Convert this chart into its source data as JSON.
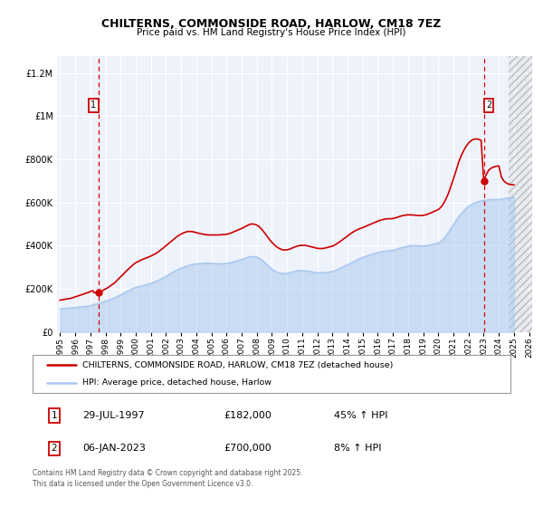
{
  "title": "CHILTERNS, COMMONSIDE ROAD, HARLOW, CM18 7EZ",
  "subtitle": "Price paid vs. HM Land Registry's House Price Index (HPI)",
  "xlim": [
    1994.8,
    2026.2
  ],
  "ylim": [
    0,
    1280000
  ],
  "yticks": [
    0,
    200000,
    400000,
    600000,
    800000,
    1000000,
    1200000
  ],
  "xticks": [
    1995,
    1996,
    1997,
    1998,
    1999,
    2000,
    2001,
    2002,
    2003,
    2004,
    2005,
    2006,
    2007,
    2008,
    2009,
    2010,
    2011,
    2012,
    2013,
    2014,
    2015,
    2016,
    2017,
    2018,
    2019,
    2020,
    2021,
    2022,
    2023,
    2024,
    2025,
    2026
  ],
  "hpi_color": "#a8c8f0",
  "property_color": "#cc0000",
  "dashed_line_color": "#cc0000",
  "background_color": "#ffffff",
  "plot_bg_color": "#eef2fa",
  "grid_color": "#ffffff",
  "hatch_start": 2024.67,
  "marker1_date": 1997.57,
  "marker1_price": 182000,
  "marker2_date": 2023.02,
  "marker2_price": 700000,
  "legend_label1": "CHILTERNS, COMMONSIDE ROAD, HARLOW, CM18 7EZ (detached house)",
  "legend_label2": "HPI: Average price, detached house, Harlow",
  "note1_date": "29-JUL-1997",
  "note1_price": "£182,000",
  "note1_hpi": "45% ↑ HPI",
  "note2_date": "06-JAN-2023",
  "note2_price": "£700,000",
  "note2_hpi": "8% ↑ HPI",
  "footer": "Contains HM Land Registry data © Crown copyright and database right 2025.\nThis data is licensed under the Open Government Licence v3.0.",
  "hpi_data_x": [
    1995.0,
    1995.08,
    1995.17,
    1995.25,
    1995.33,
    1995.42,
    1995.5,
    1995.58,
    1995.67,
    1995.75,
    1995.83,
    1995.92,
    1996.0,
    1996.08,
    1996.17,
    1996.25,
    1996.33,
    1996.42,
    1996.5,
    1996.58,
    1996.67,
    1996.75,
    1996.83,
    1996.92,
    1997.0,
    1997.08,
    1997.17,
    1997.25,
    1997.33,
    1997.42,
    1997.5,
    1997.58,
    1997.67,
    1997.75,
    1997.83,
    1997.92,
    1998.0,
    1998.08,
    1998.17,
    1998.25,
    1998.33,
    1998.42,
    1998.5,
    1998.58,
    1998.67,
    1998.75,
    1998.83,
    1998.92,
    1999.0,
    1999.17,
    1999.33,
    1999.5,
    1999.67,
    1999.83,
    2000.0,
    2000.17,
    2000.33,
    2000.5,
    2000.67,
    2000.83,
    2001.0,
    2001.17,
    2001.33,
    2001.5,
    2001.67,
    2001.83,
    2002.0,
    2002.17,
    2002.33,
    2002.5,
    2002.67,
    2002.83,
    2003.0,
    2003.17,
    2003.33,
    2003.5,
    2003.67,
    2003.83,
    2004.0,
    2004.17,
    2004.33,
    2004.5,
    2004.67,
    2004.83,
    2005.0,
    2005.17,
    2005.33,
    2005.5,
    2005.67,
    2005.83,
    2006.0,
    2006.17,
    2006.33,
    2006.5,
    2006.67,
    2006.83,
    2007.0,
    2007.17,
    2007.33,
    2007.5,
    2007.67,
    2007.83,
    2008.0,
    2008.17,
    2008.33,
    2008.5,
    2008.67,
    2008.83,
    2009.0,
    2009.17,
    2009.33,
    2009.5,
    2009.67,
    2009.83,
    2010.0,
    2010.17,
    2010.33,
    2010.5,
    2010.67,
    2010.83,
    2011.0,
    2011.17,
    2011.33,
    2011.5,
    2011.67,
    2011.83,
    2012.0,
    2012.17,
    2012.33,
    2012.5,
    2012.67,
    2012.83,
    2013.0,
    2013.17,
    2013.33,
    2013.5,
    2013.67,
    2013.83,
    2014.0,
    2014.17,
    2014.33,
    2014.5,
    2014.67,
    2014.83,
    2015.0,
    2015.17,
    2015.33,
    2015.5,
    2015.67,
    2015.83,
    2016.0,
    2016.17,
    2016.33,
    2016.5,
    2016.67,
    2016.83,
    2017.0,
    2017.17,
    2017.33,
    2017.5,
    2017.67,
    2017.83,
    2018.0,
    2018.17,
    2018.33,
    2018.5,
    2018.67,
    2018.83,
    2019.0,
    2019.17,
    2019.33,
    2019.5,
    2019.67,
    2019.83,
    2020.0,
    2020.17,
    2020.33,
    2020.5,
    2020.67,
    2020.83,
    2021.0,
    2021.17,
    2021.33,
    2021.5,
    2021.67,
    2021.83,
    2022.0,
    2022.17,
    2022.33,
    2022.5,
    2022.67,
    2022.83,
    2023.0,
    2023.17,
    2023.33,
    2023.5,
    2023.67,
    2023.83,
    2024.0,
    2024.17,
    2024.33,
    2024.5,
    2024.67,
    2024.83,
    2025.0
  ],
  "hpi_data_y": [
    108000,
    108500,
    109000,
    109500,
    110000,
    110500,
    111000,
    111500,
    112000,
    112500,
    113000,
    113500,
    114000,
    114500,
    115000,
    115500,
    116000,
    116500,
    117000,
    117500,
    118000,
    118500,
    119500,
    120500,
    122000,
    124000,
    126000,
    128000,
    129000,
    130000,
    131000,
    133000,
    135000,
    137000,
    139000,
    141000,
    143000,
    145000,
    147000,
    149000,
    151000,
    153000,
    155000,
    158000,
    161000,
    164000,
    167000,
    170000,
    173000,
    179000,
    185000,
    191000,
    197000,
    202000,
    207000,
    210000,
    213000,
    216000,
    219000,
    222000,
    225000,
    230000,
    235000,
    240000,
    246000,
    252000,
    258000,
    265000,
    272000,
    279000,
    285000,
    291000,
    296000,
    301000,
    305000,
    309000,
    312000,
    314000,
    316000,
    317000,
    318000,
    319000,
    319500,
    319000,
    318000,
    317500,
    317000,
    316500,
    316000,
    317000,
    318000,
    320000,
    323000,
    326000,
    329000,
    332000,
    336000,
    340000,
    344000,
    348000,
    350000,
    350000,
    348000,
    342000,
    334000,
    324000,
    313000,
    302000,
    292000,
    284000,
    278000,
    274000,
    272000,
    271000,
    272000,
    275000,
    278000,
    281000,
    284000,
    285000,
    285000,
    284000,
    283000,
    281000,
    279000,
    277000,
    275000,
    275000,
    275000,
    276000,
    277000,
    279000,
    281000,
    285000,
    290000,
    295000,
    301000,
    307000,
    312000,
    318000,
    324000,
    330000,
    336000,
    341000,
    346000,
    350000,
    354000,
    358000,
    362000,
    365000,
    368000,
    371000,
    373000,
    375000,
    376000,
    377000,
    379000,
    382000,
    386000,
    390000,
    393000,
    396000,
    398000,
    400000,
    401000,
    401000,
    400000,
    399000,
    399000,
    400000,
    402000,
    404000,
    407000,
    410000,
    413000,
    420000,
    430000,
    445000,
    462000,
    480000,
    498000,
    516000,
    532000,
    547000,
    560000,
    572000,
    582000,
    590000,
    596000,
    601000,
    605000,
    608000,
    610000,
    612000,
    613000,
    614000,
    614000,
    614000,
    614000,
    616000,
    618000,
    620000,
    622000,
    623000,
    624000
  ],
  "property_data_x": [
    1995.0,
    1995.08,
    1995.17,
    1995.25,
    1995.33,
    1995.42,
    1995.5,
    1995.58,
    1995.67,
    1995.75,
    1995.83,
    1995.92,
    1996.0,
    1996.08,
    1996.17,
    1996.25,
    1996.33,
    1996.42,
    1996.5,
    1996.58,
    1996.67,
    1996.75,
    1996.83,
    1996.92,
    1997.0,
    1997.08,
    1997.17,
    1997.25,
    1997.33,
    1997.42,
    1997.5,
    1997.58,
    1997.67,
    1997.75,
    1997.83,
    1997.92,
    1998.0,
    1998.08,
    1998.17,
    1998.25,
    1998.33,
    1998.42,
    1998.5,
    1998.58,
    1998.67,
    1998.75,
    1998.83,
    1998.92,
    1999.0,
    1999.17,
    1999.33,
    1999.5,
    1999.67,
    1999.83,
    2000.0,
    2000.17,
    2000.33,
    2000.5,
    2000.67,
    2000.83,
    2001.0,
    2001.17,
    2001.33,
    2001.5,
    2001.67,
    2001.83,
    2002.0,
    2002.17,
    2002.33,
    2002.5,
    2002.67,
    2002.83,
    2003.0,
    2003.17,
    2003.33,
    2003.5,
    2003.67,
    2003.83,
    2004.0,
    2004.17,
    2004.33,
    2004.5,
    2004.67,
    2004.83,
    2005.0,
    2005.17,
    2005.33,
    2005.5,
    2005.67,
    2005.83,
    2006.0,
    2006.17,
    2006.33,
    2006.5,
    2006.67,
    2006.83,
    2007.0,
    2007.17,
    2007.33,
    2007.5,
    2007.67,
    2007.83,
    2008.0,
    2008.17,
    2008.33,
    2008.5,
    2008.67,
    2008.83,
    2009.0,
    2009.17,
    2009.33,
    2009.5,
    2009.67,
    2009.83,
    2010.0,
    2010.17,
    2010.33,
    2010.5,
    2010.67,
    2010.83,
    2011.0,
    2011.17,
    2011.33,
    2011.5,
    2011.67,
    2011.83,
    2012.0,
    2012.17,
    2012.33,
    2012.5,
    2012.67,
    2012.83,
    2013.0,
    2013.17,
    2013.33,
    2013.5,
    2013.67,
    2013.83,
    2014.0,
    2014.17,
    2014.33,
    2014.5,
    2014.67,
    2014.83,
    2015.0,
    2015.17,
    2015.33,
    2015.5,
    2015.67,
    2015.83,
    2016.0,
    2016.17,
    2016.33,
    2016.5,
    2016.67,
    2016.83,
    2017.0,
    2017.17,
    2017.33,
    2017.5,
    2017.67,
    2017.83,
    2018.0,
    2018.17,
    2018.33,
    2018.5,
    2018.67,
    2018.83,
    2019.0,
    2019.17,
    2019.33,
    2019.5,
    2019.67,
    2019.83,
    2020.0,
    2020.17,
    2020.33,
    2020.5,
    2020.67,
    2020.83,
    2021.0,
    2021.17,
    2021.33,
    2021.5,
    2021.67,
    2021.83,
    2022.0,
    2022.17,
    2022.33,
    2022.5,
    2022.67,
    2022.83,
    2023.0,
    2023.17,
    2023.33,
    2023.5,
    2023.67,
    2023.83,
    2024.0,
    2024.17,
    2024.33,
    2024.5,
    2024.67,
    2024.83,
    2025.0
  ],
  "property_data_y": [
    148000,
    149000,
    150000,
    151000,
    152000,
    153000,
    154000,
    155000,
    156000,
    157000,
    159000,
    161000,
    163000,
    165000,
    167000,
    169000,
    171000,
    173000,
    175000,
    177000,
    179000,
    181000,
    183000,
    185000,
    188000,
    190000,
    192000,
    182000,
    183000,
    184000,
    185000,
    186000,
    188000,
    190000,
    193000,
    196000,
    199000,
    202000,
    206000,
    210000,
    214000,
    218000,
    222000,
    227000,
    232000,
    238000,
    244000,
    250000,
    256000,
    267000,
    279000,
    291000,
    302000,
    312000,
    321000,
    327000,
    333000,
    338000,
    343000,
    347000,
    352000,
    358000,
    364000,
    372000,
    381000,
    390000,
    400000,
    410000,
    420000,
    430000,
    439000,
    447000,
    454000,
    460000,
    464000,
    466000,
    466000,
    464000,
    461000,
    458000,
    455000,
    453000,
    451000,
    450000,
    450000,
    450000,
    450000,
    450000,
    451000,
    452000,
    453000,
    456000,
    460000,
    465000,
    470000,
    475000,
    480000,
    486000,
    492000,
    498000,
    501000,
    500000,
    496000,
    488000,
    476000,
    461000,
    445000,
    430000,
    416000,
    404000,
    394000,
    387000,
    382000,
    380000,
    381000,
    384000,
    389000,
    394000,
    398000,
    401000,
    402000,
    402000,
    400000,
    397000,
    394000,
    391000,
    388000,
    387000,
    387000,
    389000,
    392000,
    395000,
    398000,
    404000,
    411000,
    419000,
    428000,
    437000,
    445000,
    454000,
    462000,
    469000,
    475000,
    480000,
    484000,
    489000,
    494000,
    499000,
    504000,
    509000,
    514000,
    518000,
    521000,
    524000,
    525000,
    525000,
    526000,
    529000,
    533000,
    537000,
    540000,
    542000,
    543000,
    543000,
    542000,
    541000,
    540000,
    540000,
    541000,
    543000,
    547000,
    552000,
    557000,
    562000,
    568000,
    578000,
    594000,
    616000,
    643000,
    675000,
    710000,
    747000,
    784000,
    815000,
    840000,
    860000,
    876000,
    887000,
    893000,
    895000,
    893000,
    888000,
    700000,
    730000,
    750000,
    760000,
    765000,
    768000,
    770000,
    718000,
    700000,
    690000,
    685000,
    683000,
    682000
  ]
}
